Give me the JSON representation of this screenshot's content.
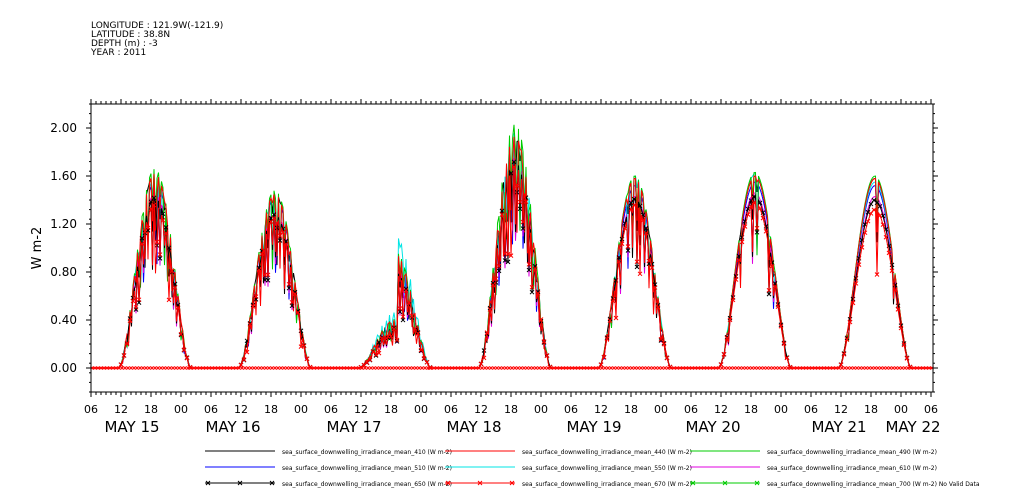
{
  "header": {
    "longitude": "LONGITUDE : 121.9W(-121.9)",
    "latitude": "LATITUDE : 38.8N",
    "depth": "DEPTH (m) : -3",
    "year": "YEAR : 2011"
  },
  "chart_data": {
    "type": "line",
    "ylabel": "W m-2",
    "ylim": [
      -0.2,
      2.2
    ],
    "y_ticks": [
      "2.00",
      "1.60",
      "1.20",
      "0.80",
      "0.40",
      "0.00"
    ],
    "x_hour_ticks": [
      "06",
      "12",
      "18",
      "00",
      "06",
      "12",
      "18",
      "00",
      "06",
      "12",
      "18",
      "00",
      "06",
      "12",
      "18",
      "00",
      "06",
      "12",
      "18",
      "00",
      "06",
      "12",
      "18",
      "00",
      "06",
      "12",
      "18",
      "00",
      "06"
    ],
    "x_day_labels": [
      "MAY 15",
      "MAY 16",
      "MAY 17",
      "MAY 18",
      "MAY 19",
      "MAY 20",
      "MAY 21",
      "MAY 22"
    ],
    "daily_peaks": [
      {
        "day": "MAY 15",
        "values": [
          1.62,
          1.62,
          1.66,
          1.55,
          1.58,
          1.45,
          1.42,
          1.36
        ]
      },
      {
        "day": "MAY 16",
        "values": [
          1.45,
          1.45,
          1.48,
          1.42,
          1.45,
          1.3,
          1.28,
          1.25
        ]
      },
      {
        "day": "MAY 17",
        "values": [
          0.95,
          0.95,
          0.97,
          0.92,
          1.1,
          0.82,
          0.8,
          0.78
        ]
      },
      {
        "day": "MAY 18",
        "values": [
          1.93,
          1.93,
          2.03,
          1.88,
          1.96,
          1.75,
          1.72,
          1.68
        ]
      },
      {
        "day": "MAY 19",
        "values": [
          1.58,
          1.58,
          1.6,
          1.52,
          1.6,
          1.43,
          1.41,
          1.36
        ]
      },
      {
        "day": "MAY 20",
        "values": [
          1.6,
          1.6,
          1.63,
          1.55,
          1.62,
          1.46,
          1.43,
          1.38
        ]
      },
      {
        "day": "MAY 21",
        "values": [
          1.58,
          1.58,
          1.6,
          1.52,
          1.55,
          1.43,
          1.4,
          1.32
        ]
      }
    ],
    "series": [
      {
        "name": "sea_surface_downwelling_irradiance_mean_410 (W m-2)",
        "color": "#000000",
        "marker": "none"
      },
      {
        "name": "sea_surface_downwelling_irradiance_mean_440 (W m-2)",
        "color": "#ff0000",
        "marker": "none"
      },
      {
        "name": "sea_surface_downwelling_irradiance_mean_490 (W m-2)",
        "color": "#00cc00",
        "marker": "none"
      },
      {
        "name": "sea_surface_downwelling_irradiance_mean_510 (W m-2)",
        "color": "#0000ff",
        "marker": "none"
      },
      {
        "name": "sea_surface_downwelling_irradiance_mean_550 (W m-2)",
        "color": "#00e5e5",
        "marker": "none"
      },
      {
        "name": "sea_surface_downwelling_irradiance_mean_610 (W m-2)",
        "color": "#e000e0",
        "marker": "none"
      },
      {
        "name": "sea_surface_downwelling_irradiance_mean_650 (W m-2)",
        "color": "#000000",
        "marker": "x"
      },
      {
        "name": "sea_surface_downwelling_irradiance_mean_670 (W m-2)",
        "color": "#ff0000",
        "marker": "x"
      },
      {
        "name": "sea_surface_downwelling_irradiance_mean_700 (W m-2) No Valid Data",
        "color": "#00cc00",
        "marker": "x"
      }
    ]
  }
}
